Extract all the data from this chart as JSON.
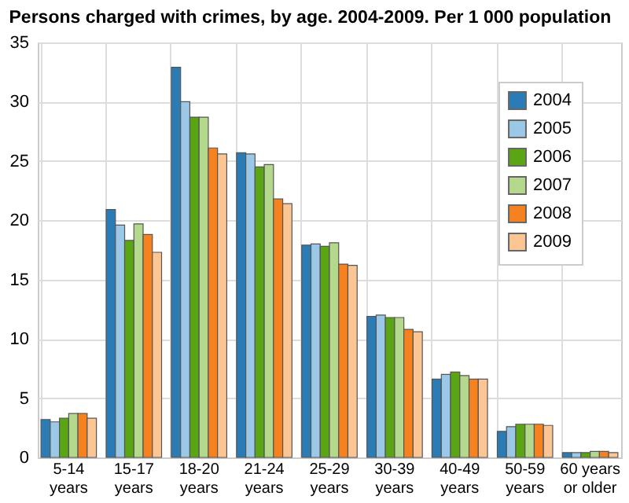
{
  "chart_data": {
    "type": "bar",
    "title": "Persons charged with crimes, by age. 2004-2009. Per 1 000 population",
    "categories": [
      "5-14 years",
      "15-17 years",
      "18-20 years",
      "21-24 years",
      "25-29 years",
      "30-39 years",
      "40-49 years",
      "50-59 years",
      "60 years or older"
    ],
    "series": [
      {
        "name": "2004",
        "color": "#2b7bb5",
        "values": [
          3.2,
          20.9,
          32.9,
          25.7,
          17.9,
          11.9,
          6.6,
          2.2,
          0.4
        ]
      },
      {
        "name": "2005",
        "color": "#9ac8e6",
        "values": [
          3.0,
          19.6,
          30.0,
          25.6,
          18.0,
          12.0,
          7.0,
          2.6,
          0.4
        ]
      },
      {
        "name": "2006",
        "color": "#5aa514",
        "values": [
          3.3,
          18.3,
          28.7,
          24.5,
          17.8,
          11.8,
          7.2,
          2.8,
          0.4
        ]
      },
      {
        "name": "2007",
        "color": "#b5d98c",
        "values": [
          3.7,
          19.7,
          28.7,
          24.7,
          18.1,
          11.8,
          6.9,
          2.8,
          0.5
        ]
      },
      {
        "name": "2008",
        "color": "#f5821f",
        "values": [
          3.7,
          18.8,
          26.1,
          21.8,
          16.3,
          10.8,
          6.6,
          2.8,
          0.5
        ]
      },
      {
        "name": "2009",
        "color": "#fbc594",
        "values": [
          3.3,
          17.3,
          25.6,
          21.4,
          16.2,
          10.6,
          6.6,
          2.7,
          0.4
        ]
      }
    ],
    "ylim": [
      0,
      35
    ],
    "yticks": [
      0,
      5,
      10,
      15,
      20,
      25,
      30,
      35
    ],
    "grid": true,
    "legend": "top right"
  }
}
